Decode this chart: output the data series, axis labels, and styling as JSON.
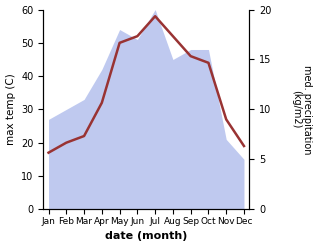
{
  "months": [
    "Jan",
    "Feb",
    "Mar",
    "Apr",
    "May",
    "Jun",
    "Jul",
    "Aug",
    "Sep",
    "Oct",
    "Nov",
    "Dec"
  ],
  "temp": [
    17,
    20,
    22,
    32,
    50,
    52,
    58,
    52,
    46,
    44,
    27,
    19
  ],
  "precip_mm": [
    9,
    10,
    11,
    14,
    18,
    17,
    20,
    15,
    16,
    16,
    7,
    5
  ],
  "temp_color": "#993333",
  "precip_color_fill": "#b8c4ee",
  "xlabel": "date (month)",
  "ylabel_left": "max temp (C)",
  "ylabel_right": "med. precipitation\n(kg/m2)",
  "ylim_left": [
    0,
    60
  ],
  "ylim_right": [
    0,
    20
  ],
  "bg_color": "#ffffff"
}
